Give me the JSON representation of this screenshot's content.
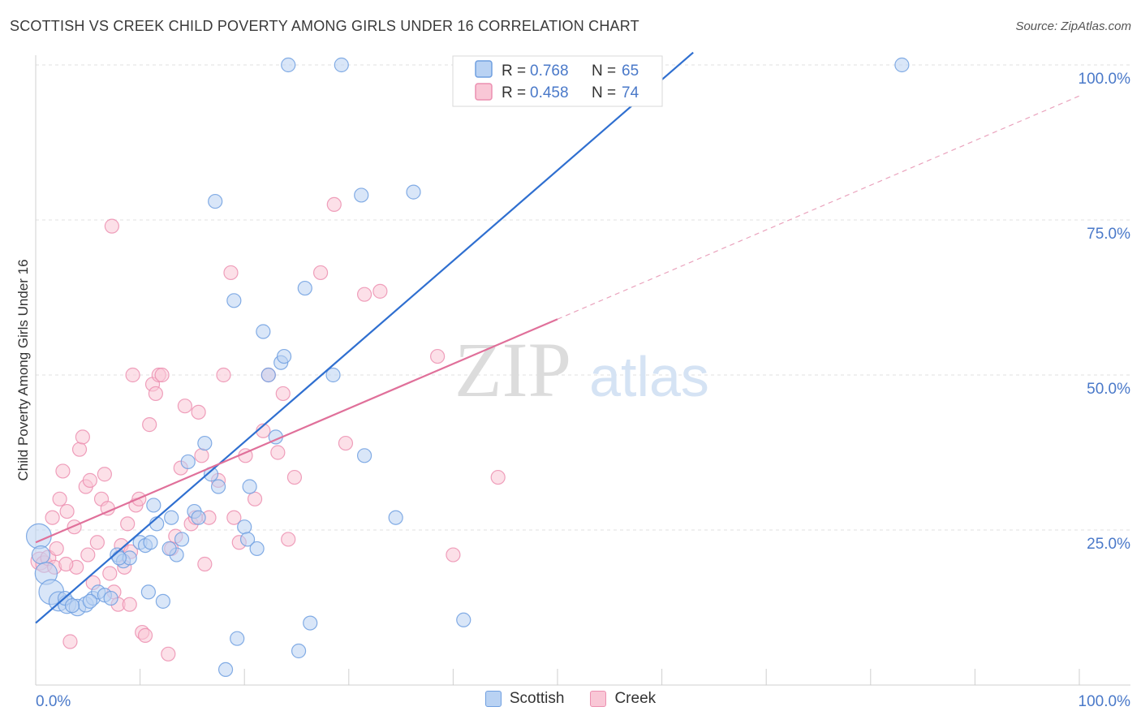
{
  "header": {
    "title": "SCOTTISH VS CREEK CHILD POVERTY AMONG GIRLS UNDER 16 CORRELATION CHART",
    "source": "Source: ZipAtlas.com"
  },
  "watermark": {
    "zip": "ZIP",
    "atlas": "atlas"
  },
  "legend_box": [
    {
      "r_label": "R =",
      "r_value": "0.768",
      "n_label": "N =",
      "n_value": "65",
      "color": "#6f9fe0"
    },
    {
      "r_label": "R =",
      "r_value": "0.458",
      "n_label": "N =",
      "n_value": "74",
      "color": "#ec8fb0"
    }
  ],
  "chart_data": {
    "type": "scatter",
    "title": "SCOTTISH VS CREEK CHILD POVERTY AMONG GIRLS UNDER 16 CORRELATION CHART",
    "xlabel": "",
    "ylabel": "Child Poverty Among Girls Under 16",
    "xlim": [
      0,
      100
    ],
    "ylim": [
      0,
      100
    ],
    "x_tick_labels": [
      "0.0%",
      "100.0%"
    ],
    "y_ticks": [
      25,
      50,
      75,
      100
    ],
    "y_tick_labels": [
      "25.0%",
      "50.0%",
      "75.0%",
      "100.0%"
    ],
    "grid": true,
    "legend_position": "bottom-center",
    "series": [
      {
        "name": "Scottish",
        "color": "#6f9fe0",
        "fill": "#b9d2f3",
        "trend": {
          "x0": 0,
          "y0": 10,
          "x1": 63,
          "y1": 102,
          "dashed_to": 63
        },
        "points": [
          [
            0.3,
            24,
            1.8
          ],
          [
            0.5,
            21,
            1.3
          ],
          [
            1.0,
            18,
            1.6
          ],
          [
            1.5,
            15,
            1.8
          ],
          [
            2.2,
            13.5,
            1.4
          ],
          [
            3.0,
            13,
            1.3
          ],
          [
            4.0,
            12.5,
            1.2
          ],
          [
            4.8,
            13,
            1.1
          ],
          [
            5.5,
            14,
            1.0
          ],
          [
            6.0,
            15,
            1.0
          ],
          [
            6.6,
            14.5,
            1.0
          ],
          [
            7.2,
            14,
            1.0
          ],
          [
            7.8,
            21,
            1.0
          ],
          [
            8.4,
            20,
            1.0
          ],
          [
            9.0,
            20.5,
            1.0
          ],
          [
            10.0,
            23,
            1.0
          ],
          [
            10.5,
            22.5,
            1.0
          ],
          [
            10.8,
            15,
            1.0
          ],
          [
            11.0,
            23,
            1.0
          ],
          [
            11.3,
            29,
            1.0
          ],
          [
            11.6,
            26,
            1.0
          ],
          [
            12.2,
            13.5,
            1.0
          ],
          [
            13.0,
            27,
            1.0
          ],
          [
            13.5,
            21,
            1.0
          ],
          [
            14.0,
            23.5,
            1.0
          ],
          [
            14.6,
            36,
            1.0
          ],
          [
            15.2,
            28,
            1.0
          ],
          [
            15.6,
            27,
            1.0
          ],
          [
            16.2,
            39,
            1.0
          ],
          [
            16.8,
            34,
            1.0
          ],
          [
            17.2,
            78,
            1.0
          ],
          [
            17.5,
            32,
            1.0
          ],
          [
            19.0,
            62,
            1.0
          ],
          [
            19.3,
            7.5,
            1.0
          ],
          [
            20.0,
            25.5,
            1.0
          ],
          [
            20.3,
            23.5,
            1.0
          ],
          [
            20.5,
            32,
            1.0
          ],
          [
            21.2,
            22,
            1.0
          ],
          [
            21.8,
            57,
            1.0
          ],
          [
            22.3,
            50,
            1.0
          ],
          [
            23.0,
            40,
            1.0
          ],
          [
            23.5,
            52,
            1.0
          ],
          [
            23.8,
            53,
            1.0
          ],
          [
            24.2,
            100,
            1.0
          ],
          [
            25.2,
            5.5,
            1.0
          ],
          [
            25.8,
            64,
            1.0
          ],
          [
            26.3,
            10,
            1.0
          ],
          [
            28.5,
            50,
            1.0
          ],
          [
            29.3,
            100,
            1.0
          ],
          [
            31.2,
            79,
            1.0
          ],
          [
            31.5,
            37,
            1.0
          ],
          [
            34.5,
            27,
            1.0
          ],
          [
            36.2,
            79.5,
            1.0
          ],
          [
            41.0,
            10.5,
            1.0
          ],
          [
            47.5,
            100,
            1.0
          ],
          [
            48.0,
            100,
            1.0
          ],
          [
            57.0,
            100,
            1.0
          ],
          [
            58.0,
            100,
            1.0
          ],
          [
            83.0,
            100,
            1.0
          ],
          [
            2.8,
            14,
            1.0
          ],
          [
            3.5,
            12.8,
            1.0
          ],
          [
            8.0,
            20.5,
            1.0
          ],
          [
            12.8,
            22,
            1.0
          ],
          [
            18.2,
            2.5,
            1.0
          ],
          [
            5.2,
            13.5,
            1.0
          ]
        ]
      },
      {
        "name": "Creek",
        "color": "#ec8fb0",
        "fill": "#f9c7d6",
        "trend": {
          "x0": 0,
          "y0": 23,
          "x1": 50,
          "y1": 59,
          "dashed_to": 100
        },
        "points": [
          [
            0.4,
            20,
            1.3
          ],
          [
            0.8,
            19.5,
            1.2
          ],
          [
            1.2,
            20.5,
            1.1
          ],
          [
            1.6,
            27,
            1.0
          ],
          [
            1.8,
            19,
            1.0
          ],
          [
            2.0,
            22,
            1.0
          ],
          [
            2.3,
            30,
            1.0
          ],
          [
            2.6,
            34.5,
            1.0
          ],
          [
            3.0,
            28,
            1.0
          ],
          [
            3.3,
            7,
            1.0
          ],
          [
            3.7,
            25.5,
            1.0
          ],
          [
            3.9,
            19,
            1.0
          ],
          [
            4.2,
            38,
            1.0
          ],
          [
            4.5,
            40,
            1.0
          ],
          [
            4.8,
            32,
            1.0
          ],
          [
            5.2,
            33,
            1.0
          ],
          [
            5.5,
            16.5,
            1.0
          ],
          [
            5.9,
            23,
            1.0
          ],
          [
            6.3,
            30,
            1.0
          ],
          [
            6.6,
            34,
            1.0
          ],
          [
            6.9,
            28.5,
            1.0
          ],
          [
            7.1,
            18,
            1.0
          ],
          [
            7.3,
            74,
            1.0
          ],
          [
            7.5,
            15,
            1.0
          ],
          [
            7.9,
            13,
            1.0
          ],
          [
            8.2,
            22.5,
            1.0
          ],
          [
            8.5,
            19,
            1.0
          ],
          [
            8.8,
            26,
            1.0
          ],
          [
            9.0,
            13,
            1.0
          ],
          [
            9.3,
            50,
            1.0
          ],
          [
            9.6,
            29,
            1.0
          ],
          [
            9.9,
            30,
            1.0
          ],
          [
            10.2,
            8.5,
            1.0
          ],
          [
            10.5,
            8,
            1.0
          ],
          [
            10.9,
            42,
            1.0
          ],
          [
            11.2,
            48.5,
            1.0
          ],
          [
            11.5,
            47,
            1.0
          ],
          [
            11.8,
            50,
            1.0
          ],
          [
            12.1,
            50,
            1.0
          ],
          [
            12.7,
            5,
            1.0
          ],
          [
            13.0,
            22,
            1.0
          ],
          [
            13.4,
            24,
            1.0
          ],
          [
            13.9,
            35,
            1.0
          ],
          [
            14.3,
            45,
            1.0
          ],
          [
            14.9,
            26,
            1.0
          ],
          [
            15.3,
            27,
            1.0
          ],
          [
            15.6,
            44,
            1.0
          ],
          [
            15.9,
            37,
            1.0
          ],
          [
            16.2,
            19.5,
            1.0
          ],
          [
            16.6,
            27,
            1.0
          ],
          [
            17.5,
            33,
            1.0
          ],
          [
            18.0,
            50,
            1.0
          ],
          [
            18.7,
            66.5,
            1.0
          ],
          [
            19.0,
            27,
            1.0
          ],
          [
            19.5,
            23,
            1.0
          ],
          [
            20.1,
            37,
            1.0
          ],
          [
            21.0,
            30,
            1.0
          ],
          [
            21.8,
            41,
            1.0
          ],
          [
            22.3,
            50,
            1.0
          ],
          [
            23.2,
            37.5,
            1.0
          ],
          [
            23.7,
            47,
            1.0
          ],
          [
            24.2,
            23.5,
            1.0
          ],
          [
            24.8,
            33.5,
            1.0
          ],
          [
            27.3,
            66.5,
            1.0
          ],
          [
            28.6,
            77.5,
            1.0
          ],
          [
            29.7,
            39,
            1.0
          ],
          [
            31.5,
            63,
            1.0
          ],
          [
            33.0,
            63.5,
            1.0
          ],
          [
            38.5,
            53,
            1.0
          ],
          [
            40.0,
            21,
            1.0
          ],
          [
            44.3,
            33.5,
            1.0
          ],
          [
            5.0,
            21,
            1.0
          ],
          [
            2.9,
            19.5,
            1.0
          ],
          [
            9.1,
            21.5,
            1.0
          ]
        ]
      }
    ]
  }
}
